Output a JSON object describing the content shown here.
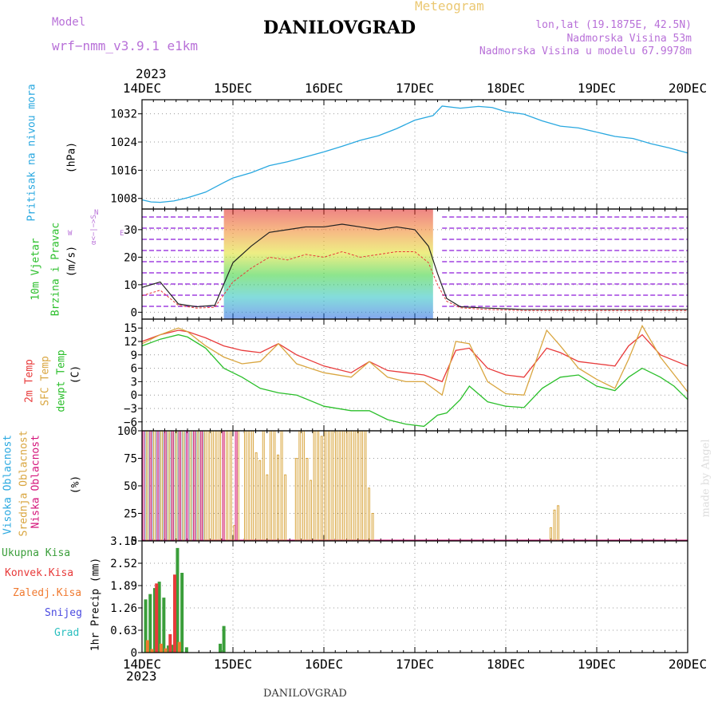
{
  "header": {
    "title": "DANILOVGRAD",
    "product": "Meteogram",
    "model_label": "Model",
    "model_name": "wrf−nmm_v3.9.1  e1km",
    "lonlat": "lon,lat (19.1875E, 42.5N)",
    "elevation": "Nadmorska Visina 53m",
    "model_elevation": "Nadmorska Visina u modelu 67.9978m",
    "year_top": "2023",
    "year_bottom": "2023",
    "footer": "DANILOVGRAD",
    "watermark": "made by Angel"
  },
  "legend_labels": {
    "pressure": "Pritisak na nivou mora",
    "pressure_unit": "(hPa)",
    "wind_1": "10m Vjetar",
    "wind_2": "Brzina i Pravac",
    "wind_unit": "(m/s)",
    "compass_n": "N",
    "compass_w": "W",
    "compass_e": "E",
    "compass_s": "α<−|−>S",
    "temp_2m": "2m Temp",
    "temp_sfc": "SFC Temp",
    "temp_dew": "dewpt Temp",
    "temp_unit": "(C)",
    "cloud_high": "Visoka Oblacnost",
    "cloud_mid": "Srednja Oblacnost",
    "cloud_low": "Niska Oblacnost",
    "cloud_unit": "(%)",
    "precip_total": "Ukupna Kisa",
    "precip_conv": "Konvek.Kisa",
    "precip_strat": "Zaledj.Kisa",
    "precip_snow": "Snijeg",
    "precip_hail": "Grad",
    "precip_axis": "1hr Precip (mm)"
  },
  "colors": {
    "pressure": "#29a8e0",
    "temp_2m": "#e83a3a",
    "temp_sfc": "#d9a640",
    "temp_dew": "#2bbf2b",
    "cloud_high": "#29a8e0",
    "cloud_mid": "#d9a640",
    "cloud_low": "#d4147a",
    "precip_total": "#3a9e3a",
    "precip_conv": "#e83a3a",
    "precip_strat": "#f07a30",
    "precip_snow": "#4a4ae0",
    "precip_hail": "#2bbfbf",
    "wind_calm": "#a040e0",
    "title_purple": "#b870d8"
  },
  "chart_data": [
    {
      "type": "line",
      "panel": "pressure",
      "x_ticks": [
        "14DEC",
        "15DEC",
        "16DEC",
        "17DEC",
        "18DEC",
        "19DEC",
        "20DEC"
      ],
      "ylabel": "(hPa)",
      "ylim": [
        1005,
        1036
      ],
      "y_ticks": [
        "1008",
        "1016",
        "1024",
        "1032"
      ],
      "grid": true,
      "series": [
        {
          "name": "Pritisak na nivou mora",
          "x_days": [
            0,
            0.1,
            0.2,
            0.35,
            0.5,
            0.7,
            0.9,
            1.0,
            1.2,
            1.4,
            1.6,
            1.8,
            2.0,
            2.2,
            2.4,
            2.6,
            2.8,
            3.0,
            3.2,
            3.3,
            3.5,
            3.7,
            3.85,
            4.0,
            4.2,
            4.4,
            4.6,
            4.8,
            5.0,
            5.2,
            5.4,
            5.6,
            5.8,
            6.0
          ],
          "values": [
            1007.6,
            1007.0,
            1006.9,
            1007.3,
            1008.2,
            1009.8,
            1012.5,
            1013.8,
            1015.3,
            1017.3,
            1018.4,
            1019.8,
            1021.2,
            1022.8,
            1024.5,
            1025.8,
            1027.8,
            1030.2,
            1031.5,
            1034.2,
            1033.6,
            1034.1,
            1033.8,
            1032.6,
            1031.9,
            1030.0,
            1028.5,
            1028.0,
            1026.8,
            1025.6,
            1025.0,
            1023.5,
            1022.3,
            1020.9
          ]
        }
      ]
    },
    {
      "type": "line",
      "panel": "wind",
      "x_ticks": [
        "14DEC",
        "15DEC",
        "16DEC",
        "17DEC",
        "18DEC",
        "19DEC",
        "20DEC"
      ],
      "ylabel": "(m/s)",
      "ylim": [
        -2.5,
        37.5
      ],
      "y_ticks": [
        "0",
        "10",
        "20",
        "30"
      ],
      "grid": true,
      "series": [
        {
          "name": "wind_speed",
          "x_days": [
            0,
            0.2,
            0.4,
            0.6,
            0.8,
            1.0,
            1.2,
            1.4,
            1.6,
            1.8,
            2.0,
            2.2,
            2.4,
            2.6,
            2.8,
            3.0,
            3.15,
            3.25,
            3.35,
            3.5,
            3.8,
            4.2,
            4.6,
            5.0,
            5.4,
            5.8,
            6.0
          ],
          "values": [
            6,
            8,
            2.5,
            1.5,
            1.8,
            11,
            16,
            20,
            19,
            21,
            20,
            22,
            20,
            21,
            22,
            22,
            18,
            10,
            4,
            1.6,
            1,
            0.6,
            0.6,
            0.6,
            0.6,
            0.6,
            0.6
          ]
        },
        {
          "name": "wind_gust",
          "x_days": [
            0,
            0.2,
            0.4,
            0.6,
            0.8,
            1.0,
            1.2,
            1.4,
            1.6,
            1.8,
            2.0,
            2.2,
            2.4,
            2.6,
            2.8,
            3.0,
            3.15,
            3.25,
            3.35,
            3.5,
            3.8,
            4.2,
            4.6,
            5.0,
            5.4,
            5.8,
            6.0
          ],
          "values": [
            9,
            11,
            3,
            2,
            2.5,
            18,
            24,
            29,
            30,
            31,
            31,
            32,
            31,
            30,
            31,
            30,
            24,
            14,
            5,
            2,
            1.5,
            1,
            1,
            1,
            1,
            1,
            1
          ]
        }
      ]
    },
    {
      "type": "line",
      "panel": "temperature",
      "x_ticks": [
        "14DEC",
        "15DEC",
        "16DEC",
        "17DEC",
        "18DEC",
        "19DEC",
        "20DEC"
      ],
      "ylabel": "(C)",
      "ylim": [
        -8,
        17
      ],
      "y_ticks": [
        "15",
        "12",
        "9",
        "6",
        "3",
        "0",
        "−3",
        "−6"
      ],
      "grid": true,
      "series": [
        {
          "name": "2m Temp",
          "x_days": [
            0,
            0.2,
            0.4,
            0.5,
            0.7,
            0.9,
            1.1,
            1.3,
            1.5,
            1.7,
            2.0,
            2.3,
            2.5,
            2.7,
            2.9,
            3.1,
            3.3,
            3.45,
            3.6,
            3.8,
            4.0,
            4.2,
            4.45,
            4.6,
            4.8,
            5.0,
            5.2,
            5.35,
            5.5,
            5.7,
            6.0
          ],
          "values": [
            12,
            13.5,
            14.5,
            14.2,
            12.8,
            11,
            10,
            9.5,
            11.5,
            9,
            6.5,
            5,
            7.5,
            5.5,
            5,
            4.5,
            3,
            10,
            10.5,
            6,
            4.5,
            4,
            10.5,
            9.5,
            7.5,
            7,
            6.5,
            11,
            13.5,
            9,
            6.5
          ]
        },
        {
          "name": "SFC Temp",
          "x_days": [
            0,
            0.2,
            0.4,
            0.5,
            0.7,
            0.9,
            1.1,
            1.3,
            1.5,
            1.7,
            2.0,
            2.3,
            2.5,
            2.7,
            2.9,
            3.1,
            3.3,
            3.45,
            3.6,
            3.8,
            4.0,
            4.2,
            4.45,
            4.6,
            4.8,
            5.0,
            5.2,
            5.35,
            5.5,
            5.7,
            6.0
          ],
          "values": [
            11.5,
            13.5,
            15,
            14.2,
            11,
            8.5,
            7,
            7.5,
            11.5,
            7,
            5,
            4,
            7.5,
            4,
            3,
            3,
            0,
            12,
            11.5,
            3,
            0.3,
            0,
            14.5,
            11,
            6,
            3.5,
            1.5,
            8,
            15.5,
            8.5,
            0.7
          ]
        },
        {
          "name": "dewpt Temp",
          "x_days": [
            0,
            0.2,
            0.4,
            0.5,
            0.7,
            0.9,
            1.1,
            1.3,
            1.5,
            1.7,
            2.0,
            2.3,
            2.5,
            2.7,
            2.9,
            3.1,
            3.25,
            3.35,
            3.5,
            3.6,
            3.8,
            4.0,
            4.2,
            4.4,
            4.6,
            4.8,
            5.0,
            5.2,
            5.35,
            5.5,
            5.7,
            5.85,
            6.0
          ],
          "values": [
            11,
            12.5,
            13.5,
            13,
            10.5,
            6,
            4,
            1.5,
            0.5,
            0,
            -2.5,
            -3.5,
            -3.5,
            -5.5,
            -6.5,
            -7,
            -4.5,
            -4,
            -1,
            2,
            -1.5,
            -2.5,
            -2.8,
            1.5,
            4,
            4.5,
            2,
            1,
            4,
            6,
            4,
            2,
            -1
          ]
        }
      ]
    },
    {
      "type": "bar",
      "panel": "cloud",
      "x_ticks": [
        "14DEC",
        "15DEC",
        "16DEC",
        "17DEC",
        "18DEC",
        "19DEC",
        "20DEC"
      ],
      "ylabel": "(%)",
      "ylim": [
        0,
        100
      ],
      "y_ticks": [
        "0",
        "25",
        "50",
        "75",
        "100"
      ],
      "grid": true,
      "series": [
        {
          "name": "Visoka Oblacnost",
          "x_days": [
            0.04,
            0.08,
            0.12,
            0.16,
            0.2,
            0.24,
            0.28,
            0.32,
            0.36,
            0.4,
            0.44,
            0.48,
            0.52,
            0.56,
            0.6,
            0.64,
            0.68
          ],
          "values": [
            100,
            100,
            100,
            100,
            100,
            100,
            100,
            100,
            100,
            100,
            100,
            100,
            100,
            100,
            100,
            100,
            100
          ]
        },
        {
          "name": "Srednja Oblacnost",
          "x_days": [
            0.06,
            0.1,
            0.14,
            0.18,
            0.22,
            0.26,
            0.3,
            0.34,
            0.38,
            0.42,
            0.46,
            0.5,
            0.54,
            0.58,
            0.62,
            0.66,
            0.7,
            0.74,
            0.78,
            0.82,
            0.86,
            0.9,
            0.94,
            0.98,
            1.02,
            1.06,
            1.14,
            1.18,
            1.22,
            1.26,
            1.3,
            1.34,
            1.38,
            1.42,
            1.46,
            1.5,
            1.54,
            1.58,
            1.7,
            1.74,
            1.78,
            1.82,
            1.86,
            1.9,
            1.94,
            1.98,
            2.02,
            2.06,
            2.1,
            2.14,
            2.18,
            2.22,
            2.26,
            2.3,
            2.34,
            2.38,
            2.42,
            2.46,
            2.5,
            2.54,
            4.5,
            4.54,
            4.58
          ],
          "values": [
            100,
            100,
            100,
            100,
            100,
            100,
            100,
            100,
            100,
            100,
            100,
            100,
            100,
            100,
            100,
            100,
            100,
            100,
            100,
            100,
            100,
            100,
            100,
            100,
            14,
            100,
            100,
            100,
            100,
            80,
            73,
            100,
            60,
            100,
            100,
            78,
            100,
            60,
            75,
            100,
            100,
            75,
            55,
            100,
            100,
            95,
            100,
            100,
            100,
            100,
            100,
            100,
            100,
            100,
            100,
            100,
            100,
            100,
            48,
            25,
            12,
            28,
            32
          ]
        },
        {
          "name": "Niska Oblacnost",
          "x_days": [
            0.02,
            0.1,
            0.18,
            0.26,
            0.34,
            0.42,
            0.5,
            0.58,
            0.66,
            0.9,
            1.04
          ],
          "values": [
            100,
            100,
            100,
            100,
            100,
            100,
            100,
            100,
            100,
            100,
            100
          ]
        }
      ]
    },
    {
      "type": "bar",
      "panel": "precipitation",
      "x_ticks": [
        "14DEC",
        "15DEC",
        "16DEC",
        "17DEC",
        "18DEC",
        "19DEC",
        "20DEC"
      ],
      "ylabel": "1hr Precip (mm)",
      "ylim": [
        0,
        3.15
      ],
      "y_ticks": [
        "0",
        "0.63",
        "1.26",
        "1.89",
        "2.52",
        "3.15"
      ],
      "grid": true,
      "series": [
        {
          "name": "Ukupna Kisa",
          "x_days": [
            0.04,
            0.09,
            0.14,
            0.19,
            0.24,
            0.29,
            0.34,
            0.39,
            0.44,
            0.49,
            0.86,
            0.9
          ],
          "values": [
            1.5,
            1.65,
            1.82,
            2.0,
            1.55,
            0.2,
            0.22,
            2.95,
            2.25,
            0.15,
            0.25,
            0.75
          ]
        },
        {
          "name": "Konvek.Kisa",
          "x_days": [
            0.16,
            0.31,
            0.36
          ],
          "values": [
            1.95,
            0.52,
            2.2
          ]
        },
        {
          "name": "Zaledj.Kisa",
          "x_days": [
            0.06,
            0.11,
            0.21,
            0.26,
            0.41
          ],
          "values": [
            0.35,
            0.1,
            0.25,
            0.12,
            0.3
          ]
        },
        {
          "name": "Snijeg",
          "x_days": [],
          "values": []
        },
        {
          "name": "Grad",
          "x_days": [],
          "values": []
        }
      ]
    }
  ]
}
